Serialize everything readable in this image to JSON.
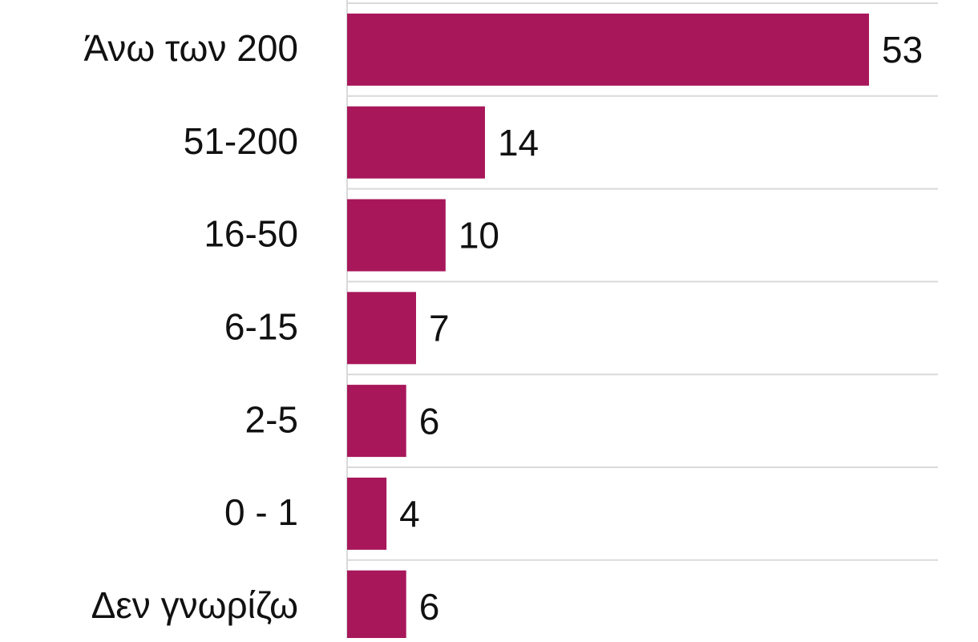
{
  "chart_data": {
    "type": "barh",
    "categories": [
      "Άνω των 200",
      "51-200",
      "16-50",
      "6-15",
      "2-5",
      "0 - 1",
      "Δεν γνωρίζω"
    ],
    "values": [
      53,
      14,
      10,
      7,
      6,
      4,
      6
    ],
    "color": "#a8175a",
    "xlim": [
      0,
      60
    ]
  }
}
